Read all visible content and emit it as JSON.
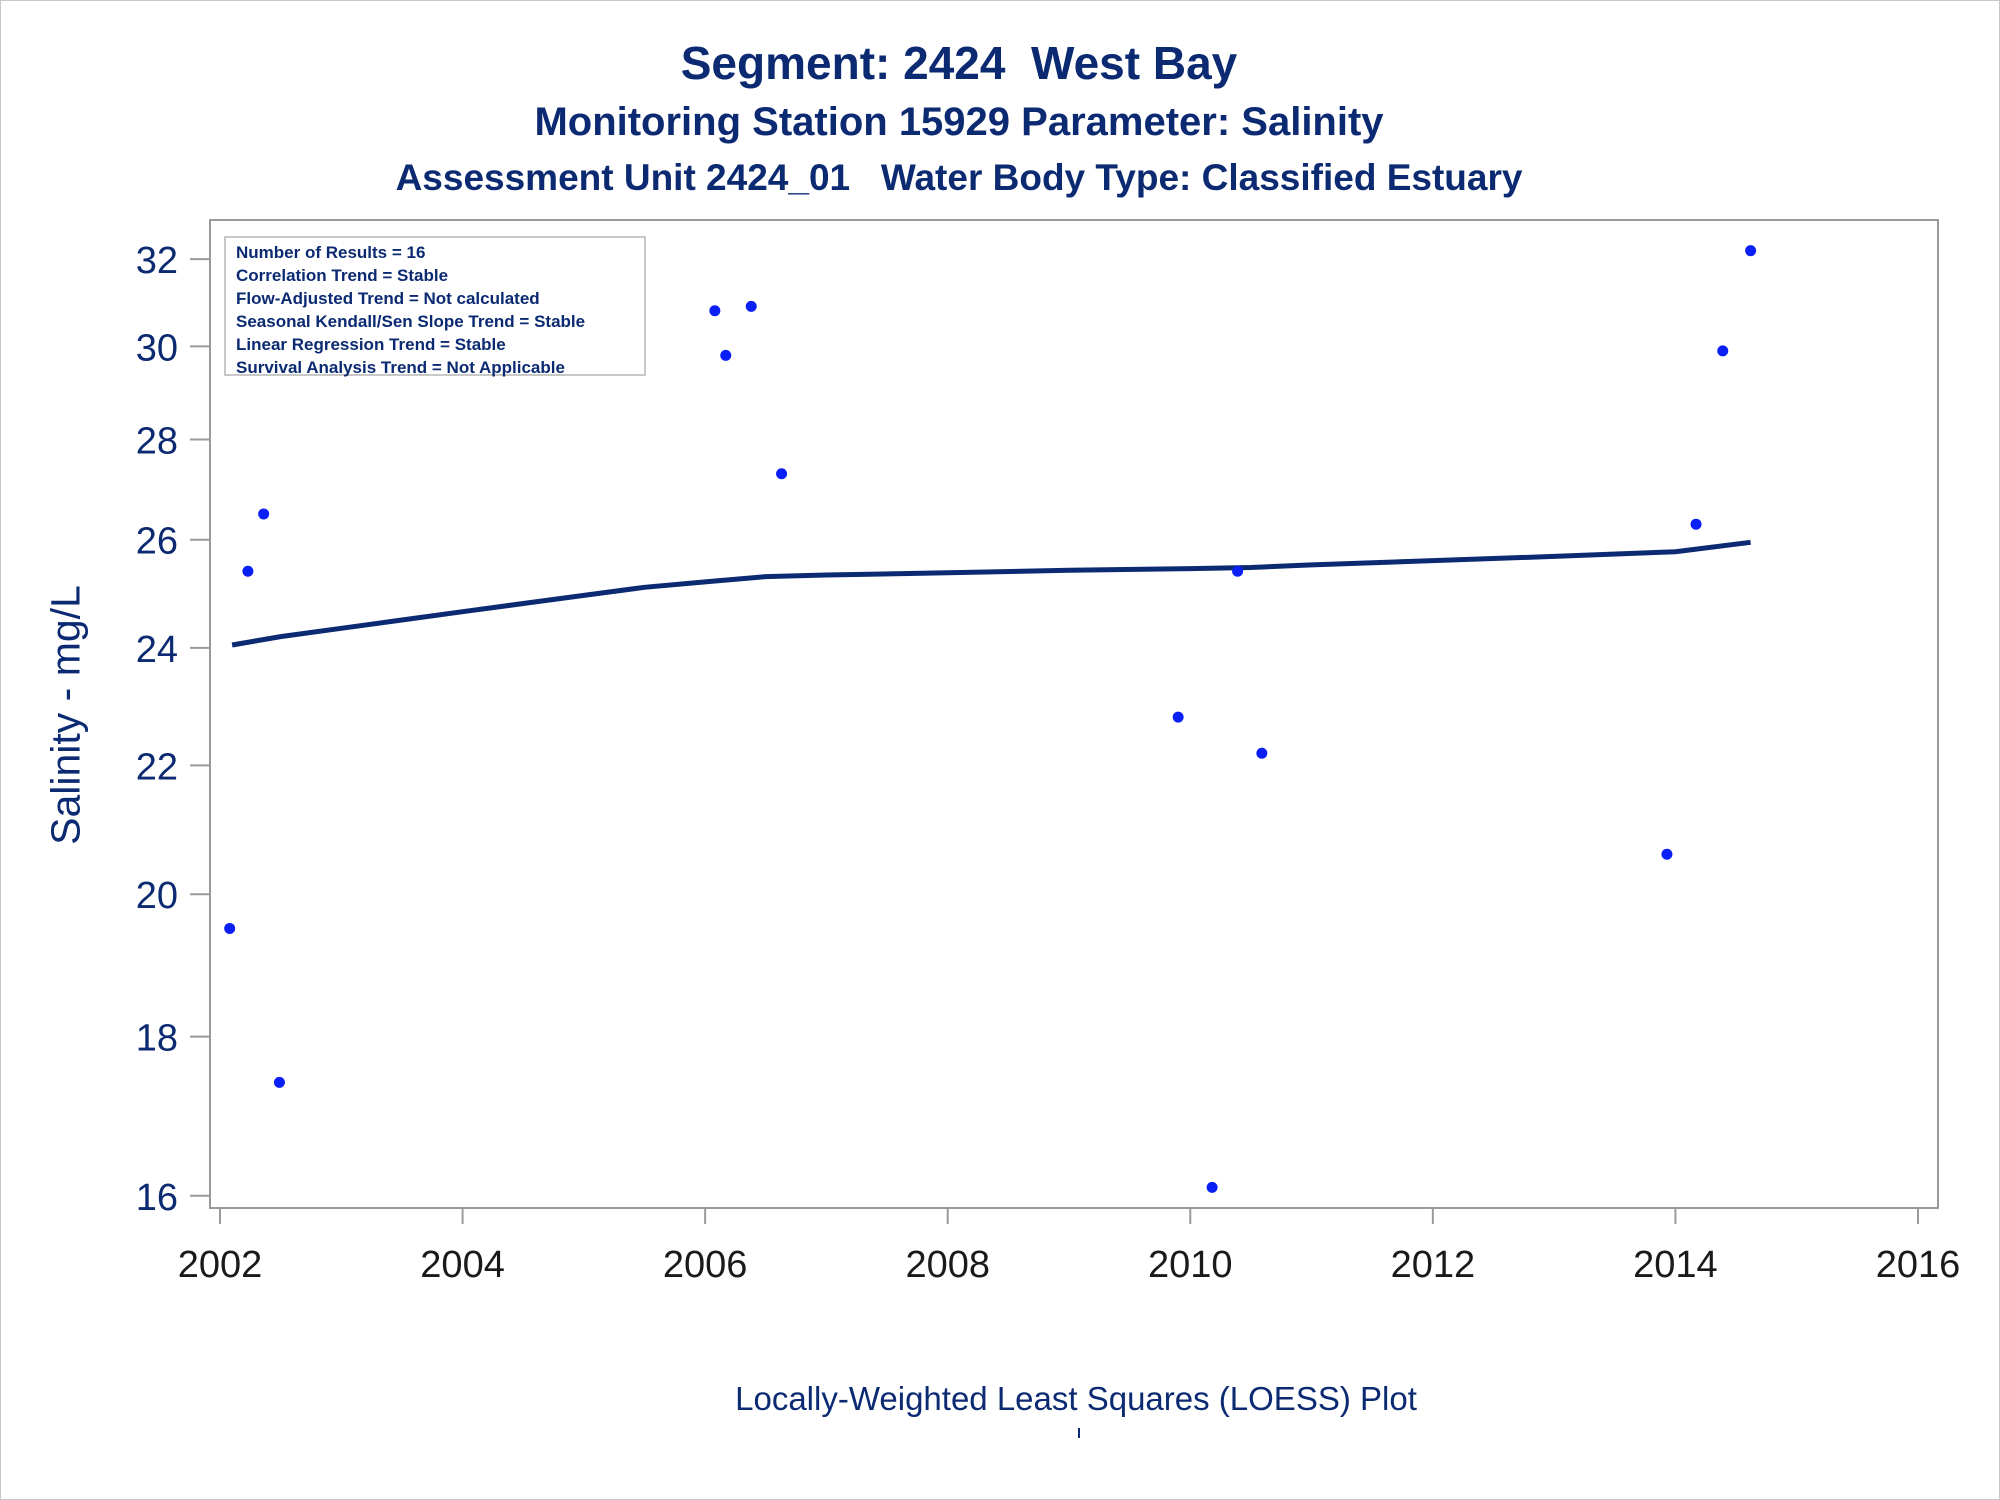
{
  "titles": {
    "line1": "Segment: 2424  West Bay",
    "line2": "Monitoring Station 15929 Parameter: Salinity",
    "line3": "Assessment Unit 2424_01   Water Body Type: Classified Estuary"
  },
  "footnote": "Locally-Weighted Least Squares (LOESS) Plot",
  "legend": {
    "lines": [
      "Number of Results = 16",
      "Correlation Trend = Stable",
      "Flow-Adjusted Trend = Not calculated",
      "Seasonal Kendall/Sen Slope Trend = Stable",
      "Linear Regression Trend = Stable",
      "Survival Analysis Trend = Not Applicable"
    ]
  },
  "colors": {
    "text": "#0b2a72",
    "points": "#0a1ff5",
    "loess": "#0b2a72",
    "axis": "#9a9a9a"
  },
  "chart_data": {
    "type": "scatter",
    "title": "Segment: 2424  West Bay",
    "xlabel": "",
    "ylabel": "Salinity - mg/L",
    "y_scale": "log",
    "xlim": [
      2002,
      2016
    ],
    "ylim": [
      15.95,
      32.6
    ],
    "xticks": [
      2002,
      2004,
      2006,
      2008,
      2010,
      2012,
      2014,
      2016
    ],
    "yticks": [
      16,
      18,
      20,
      22,
      24,
      26,
      28,
      30,
      32
    ],
    "grid": false,
    "legend_placement": "top-left",
    "series": [
      {
        "type": "scatter",
        "x": [
          2002.08,
          2002.23,
          2002.36,
          2002.49,
          2006.08,
          2006.17,
          2006.38,
          2006.63,
          2009.9,
          2010.18,
          2010.39,
          2010.59,
          2013.93,
          2014.17,
          2014.39,
          2014.62
        ],
        "y": [
          19.5,
          25.4,
          26.5,
          17.4,
          30.8,
          29.8,
          30.9,
          27.3,
          22.8,
          16.1,
          25.4,
          22.2,
          20.6,
          26.3,
          29.9,
          32.2
        ]
      },
      {
        "type": "line",
        "x": [
          2002.1,
          2002.5,
          2003.0,
          2003.5,
          2004.0,
          2004.5,
          2005.0,
          2005.5,
          2006.0,
          2006.5,
          2007.0,
          2008.0,
          2009.0,
          2010.0,
          2010.5,
          2011.0,
          2012.0,
          2013.0,
          2014.0,
          2014.62
        ],
        "y": [
          24.05,
          24.2,
          24.35,
          24.5,
          24.65,
          24.8,
          24.95,
          25.1,
          25.2,
          25.3,
          25.33,
          25.37,
          25.42,
          25.45,
          25.47,
          25.52,
          25.6,
          25.68,
          25.77,
          25.95
        ]
      }
    ]
  }
}
